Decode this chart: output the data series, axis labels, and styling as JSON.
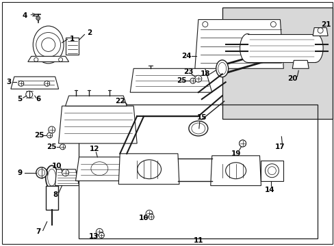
{
  "bg": "#ffffff",
  "lc": "#1a1a1a",
  "tc": "#000000",
  "shade": "#d8d8d8",
  "fig_w": 4.89,
  "fig_h": 3.6,
  "dpi": 100,
  "fs": 7.5,
  "fs_sm": 6.5
}
